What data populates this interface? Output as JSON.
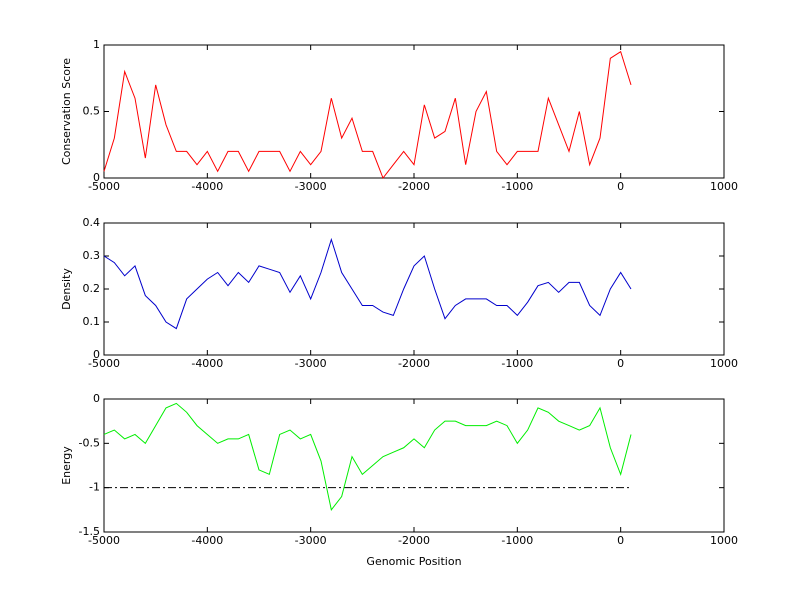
{
  "chart_data": [
    {
      "type": "line",
      "ylabel": "Conservation Score",
      "color": "#ff0000",
      "x": [
        -5000,
        -4900,
        -4800,
        -4700,
        -4600,
        -4500,
        -4400,
        -4300,
        -4200,
        -4100,
        -4000,
        -3900,
        -3800,
        -3700,
        -3600,
        -3500,
        -3400,
        -3300,
        -3200,
        -3100,
        -3000,
        -2900,
        -2800,
        -2700,
        -2600,
        -2500,
        -2400,
        -2300,
        -2200,
        -2100,
        -2000,
        -1900,
        -1800,
        -1700,
        -1600,
        -1500,
        -1400,
        -1300,
        -1200,
        -1100,
        -1000,
        -900,
        -800,
        -700,
        -600,
        -500,
        -400,
        -300,
        -200,
        -100,
        0,
        100
      ],
      "values": [
        0.05,
        0.3,
        0.8,
        0.6,
        0.15,
        0.7,
        0.4,
        0.2,
        0.2,
        0.1,
        0.2,
        0.05,
        0.2,
        0.2,
        0.05,
        0.2,
        0.2,
        0.2,
        0.05,
        0.2,
        0.1,
        0.2,
        0.6,
        0.3,
        0.45,
        0.2,
        0.2,
        0.0,
        0.1,
        0.2,
        0.1,
        0.55,
        0.3,
        0.35,
        0.6,
        0.1,
        0.5,
        0.65,
        0.2,
        0.1,
        0.2,
        0.2,
        0.2,
        0.6,
        0.4,
        0.2,
        0.5,
        0.1,
        0.3,
        0.9,
        0.95,
        0.7
      ],
      "xlim": [
        -5000,
        1000
      ],
      "xticks": [
        -5000,
        -4000,
        -3000,
        -2000,
        -1000,
        0,
        1000
      ],
      "ylim": [
        0,
        1
      ],
      "yticks": [
        0,
        0.5,
        1
      ]
    },
    {
      "type": "line",
      "ylabel": "Density",
      "color": "#0000cc",
      "x": [
        -5000,
        -4900,
        -4800,
        -4700,
        -4600,
        -4500,
        -4400,
        -4300,
        -4200,
        -4100,
        -4000,
        -3900,
        -3800,
        -3700,
        -3600,
        -3500,
        -3400,
        -3300,
        -3200,
        -3100,
        -3000,
        -2900,
        -2800,
        -2700,
        -2600,
        -2500,
        -2400,
        -2300,
        -2200,
        -2100,
        -2000,
        -1900,
        -1800,
        -1700,
        -1600,
        -1500,
        -1400,
        -1300,
        -1200,
        -1100,
        -1000,
        -900,
        -800,
        -700,
        -600,
        -500,
        -400,
        -300,
        -200,
        -100,
        0,
        100
      ],
      "values": [
        0.3,
        0.28,
        0.24,
        0.27,
        0.18,
        0.15,
        0.1,
        0.08,
        0.17,
        0.2,
        0.23,
        0.25,
        0.21,
        0.25,
        0.22,
        0.27,
        0.26,
        0.25,
        0.19,
        0.24,
        0.17,
        0.25,
        0.35,
        0.25,
        0.2,
        0.15,
        0.15,
        0.13,
        0.12,
        0.2,
        0.27,
        0.3,
        0.2,
        0.11,
        0.15,
        0.17,
        0.17,
        0.17,
        0.15,
        0.15,
        0.12,
        0.16,
        0.21,
        0.22,
        0.19,
        0.22,
        0.22,
        0.15,
        0.12,
        0.2,
        0.25,
        0.2
      ],
      "xlim": [
        -5000,
        1000
      ],
      "xticks": [
        -5000,
        -4000,
        -3000,
        -2000,
        -1000,
        0,
        1000
      ],
      "ylim": [
        0,
        0.4
      ],
      "yticks": [
        0,
        0.1,
        0.2,
        0.3,
        0.4
      ]
    },
    {
      "type": "line",
      "ylabel": "Energy",
      "xlabel": "Genomic Position",
      "color": "#00ee00",
      "x": [
        -5000,
        -4900,
        -4800,
        -4700,
        -4600,
        -4500,
        -4400,
        -4300,
        -4200,
        -4100,
        -4000,
        -3900,
        -3800,
        -3700,
        -3600,
        -3500,
        -3400,
        -3300,
        -3200,
        -3100,
        -3000,
        -2900,
        -2800,
        -2700,
        -2600,
        -2500,
        -2400,
        -2300,
        -2200,
        -2100,
        -2000,
        -1900,
        -1800,
        -1700,
        -1600,
        -1500,
        -1400,
        -1300,
        -1200,
        -1100,
        -1000,
        -900,
        -800,
        -700,
        -600,
        -500,
        -400,
        -300,
        -200,
        -100,
        0,
        100
      ],
      "values": [
        -0.4,
        -0.35,
        -0.45,
        -0.4,
        -0.5,
        -0.3,
        -0.1,
        -0.05,
        -0.15,
        -0.3,
        -0.4,
        -0.5,
        -0.45,
        -0.45,
        -0.4,
        -0.8,
        -0.85,
        -0.4,
        -0.35,
        -0.45,
        -0.4,
        -0.7,
        -1.25,
        -1.1,
        -0.65,
        -0.85,
        -0.75,
        -0.65,
        -0.6,
        -0.55,
        -0.45,
        -0.55,
        -0.35,
        -0.25,
        -0.25,
        -0.3,
        -0.3,
        -0.3,
        -0.25,
        -0.3,
        -0.5,
        -0.35,
        -0.1,
        -0.15,
        -0.25,
        -0.3,
        -0.35,
        -0.3,
        -0.1,
        -0.55,
        -0.85,
        -0.4
      ],
      "reference_line": {
        "y": -1,
        "x": [
          -5000,
          100
        ],
        "color": "#000000"
      },
      "xlim": [
        -5000,
        1000
      ],
      "xticks": [
        -5000,
        -4000,
        -3000,
        -2000,
        -1000,
        0,
        1000
      ],
      "ylim": [
        -1.5,
        0
      ],
      "yticks": [
        -1.5,
        -1,
        -0.5,
        0
      ]
    }
  ]
}
